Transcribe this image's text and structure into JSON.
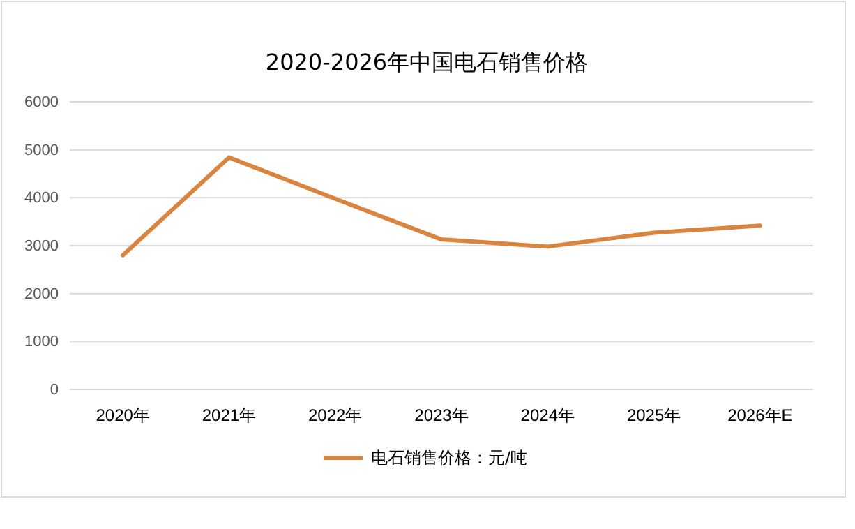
{
  "chart_data": {
    "type": "line",
    "title": "2020-2026年中国电石销售价格",
    "categories": [
      "2020年",
      "2021年",
      "2022年",
      "2023年",
      "2024年",
      "2025年",
      "2026年E"
    ],
    "series": [
      {
        "name": "电石销售价格：元/吨",
        "color": "#d9843f",
        "values": [
          2800,
          4840,
          3980,
          3130,
          2980,
          3270,
          3420
        ]
      }
    ],
    "ylim": [
      0,
      6000
    ],
    "yticks": [
      0,
      1000,
      2000,
      3000,
      4000,
      5000,
      6000
    ],
    "grid": "y",
    "legend": "bottom",
    "marker": "none",
    "line_style": "solid"
  }
}
